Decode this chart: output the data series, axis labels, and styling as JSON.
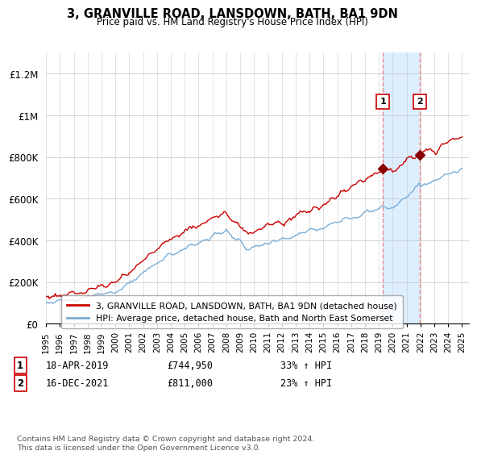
{
  "title": "3, GRANVILLE ROAD, LANSDOWN, BATH, BA1 9DN",
  "subtitle": "Price paid vs. HM Land Registry's House Price Index (HPI)",
  "red_label": "3, GRANVILLE ROAD, LANSDOWN, BATH, BA1 9DN (detached house)",
  "blue_label": "HPI: Average price, detached house, Bath and North East Somerset",
  "transaction1_date": "18-APR-2019",
  "transaction1_price": "£744,950",
  "transaction1_hpi": "33% ↑ HPI",
  "transaction2_date": "16-DEC-2021",
  "transaction2_price": "£811,000",
  "transaction2_hpi": "23% ↑ HPI",
  "footer": "Contains HM Land Registry data © Crown copyright and database right 2024.\nThis data is licensed under the Open Government Licence v3.0.",
  "red_color": "#cc0000",
  "blue_color": "#7aaed6",
  "highlight_color": "#ddeeff",
  "vline_color": "#ee8888",
  "ylim_min": 0,
  "ylim_max": 1300000,
  "yticks": [
    0,
    200000,
    400000,
    600000,
    800000,
    1000000,
    1200000
  ],
  "ytick_labels": [
    "£0",
    "£200K",
    "£400K",
    "£600K",
    "£800K",
    "£1M",
    "£1.2M"
  ],
  "t1_year": 2019.29,
  "t1_price": 744950,
  "t2_year": 2021.96,
  "t2_price": 811000
}
